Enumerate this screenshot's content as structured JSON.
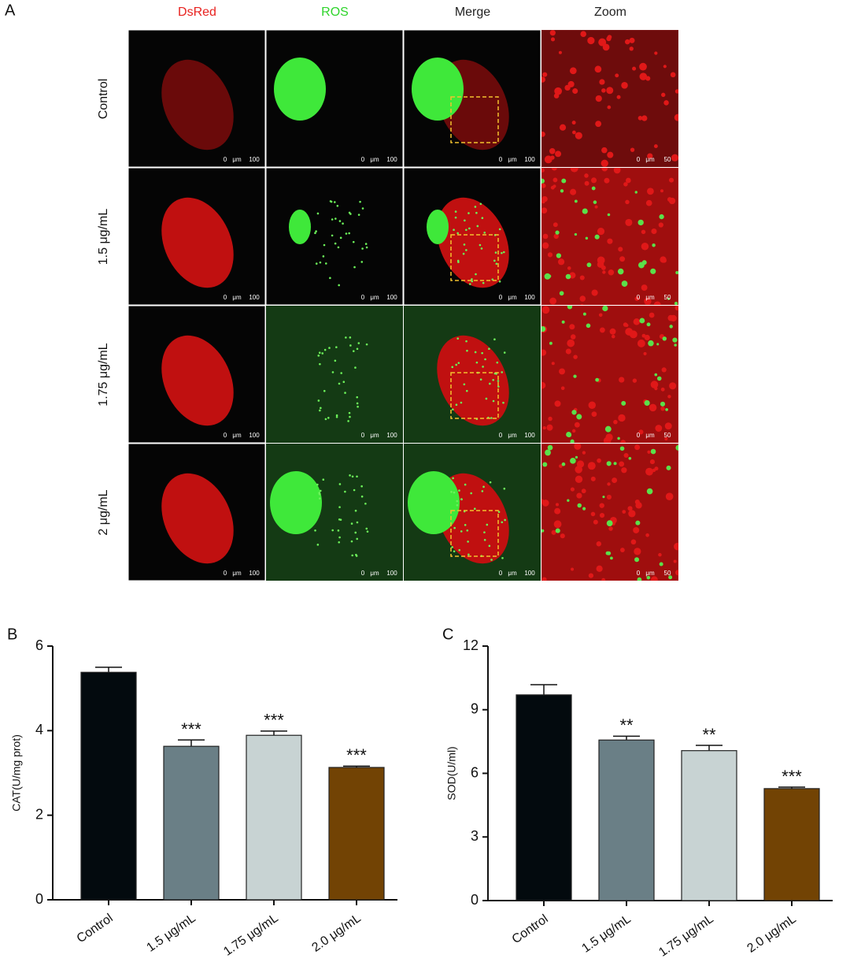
{
  "panel_a": {
    "label": "A",
    "columns": [
      {
        "text": "DsRed",
        "color": "#e8221f"
      },
      {
        "text": "ROS",
        "color": "#2ed42b"
      },
      {
        "text": "Merge",
        "color": "#222222"
      },
      {
        "text": "Zoom",
        "color": "#222222"
      }
    ],
    "rows": [
      "Control",
      "1.5 μg/mL",
      "1.75 μg/mL",
      "2 μg/mL"
    ],
    "scale_bar": {
      "start": "0",
      "unit": "μm",
      "length": "100",
      "zoom_length": "50"
    }
  },
  "chart_data": [
    {
      "type": "bar",
      "label": "B",
      "y_label": "CAT(U/mg prot)",
      "categories": [
        "Control",
        "1.5  μg/mL",
        "1.75  μg/mL",
        "2.0  μg/mL"
      ],
      "values": [
        5.38,
        3.63,
        3.89,
        3.13
      ],
      "errors": [
        0.12,
        0.15,
        0.1,
        0.03
      ],
      "significance": [
        null,
        "***",
        "***",
        "***"
      ],
      "colors": [
        "#030a0e",
        "#6a7f86",
        "#c8d3d3",
        "#724304"
      ],
      "ylim": [
        0,
        6
      ],
      "yticks": [
        0,
        2,
        4,
        6
      ]
    },
    {
      "type": "bar",
      "label": "C",
      "y_label": "SOD(U/ml)",
      "categories": [
        "Control",
        "1.5  μg/mL",
        "1.75  μg/mL",
        "2.0  μg/mL"
      ],
      "values": [
        9.7,
        7.57,
        7.07,
        5.28
      ],
      "errors": [
        0.48,
        0.18,
        0.25,
        0.07
      ],
      "significance": [
        null,
        "**",
        "**",
        "***"
      ],
      "colors": [
        "#030a0e",
        "#6a7f86",
        "#c8d3d3",
        "#724304"
      ],
      "ylim": [
        0,
        12
      ],
      "yticks": [
        0,
        3,
        6,
        9,
        12
      ]
    }
  ]
}
